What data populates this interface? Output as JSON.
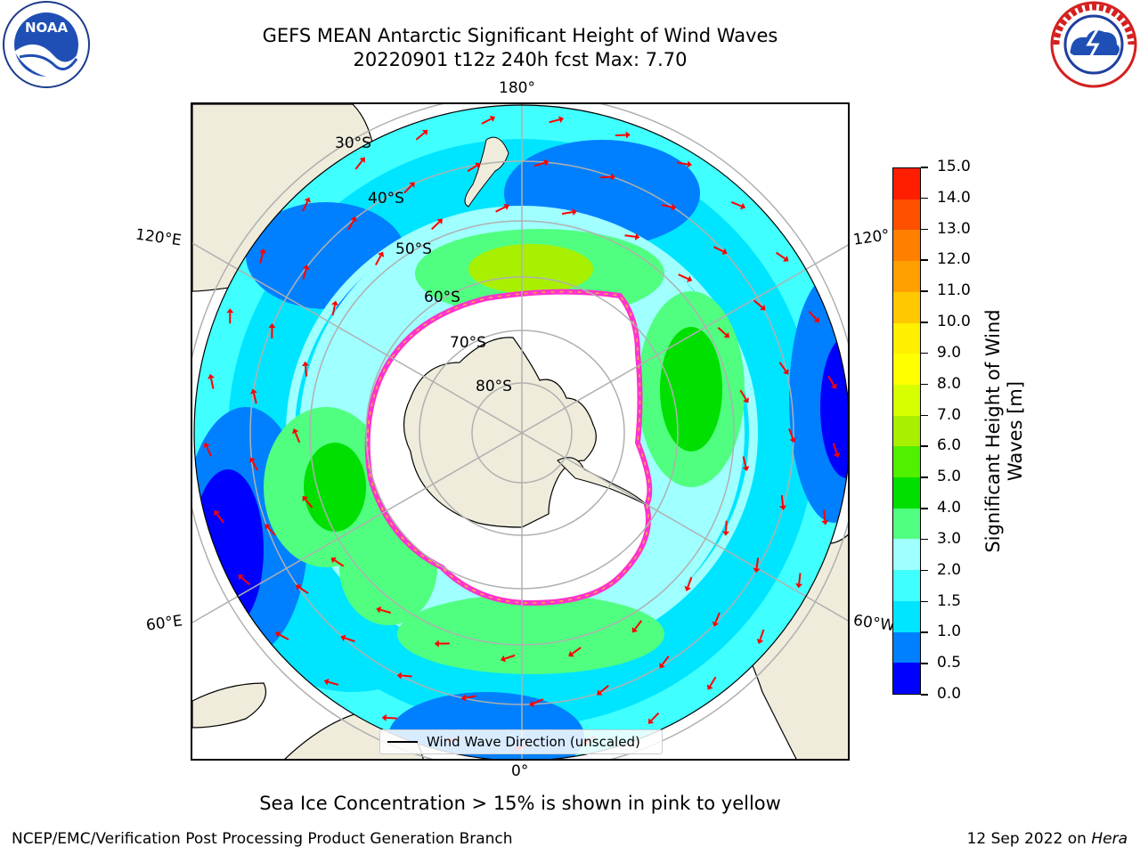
{
  "title_line1": "GEFS MEAN Antarctic Significant Height of Wind Waves",
  "title_line2": "20220901 t12z 240h fcst   Max: 7.70",
  "lon_labels": {
    "top": "180°",
    "bottom": "0°",
    "upper_left": "120°E",
    "lower_left": "60°E",
    "upper_right": "120°",
    "lower_right": "60°W"
  },
  "lat_labels": [
    "30°S",
    "40°S",
    "50°S",
    "60°S",
    "70°S",
    "80°S"
  ],
  "colorbar": {
    "title": "Significant Height of Wind Waves [m]",
    "ticks": [
      "0.0",
      "0.5",
      "1.0",
      "1.5",
      "2.0",
      "3.0",
      "4.0",
      "5.0",
      "6.0",
      "7.0",
      "8.0",
      "9.0",
      "10.0",
      "11.0",
      "12.0",
      "13.0",
      "14.0",
      "15.0"
    ],
    "colors": [
      "#0000ff",
      "#0080ff",
      "#00e5ff",
      "#40ffff",
      "#a0ffff",
      "#50ff80",
      "#00e000",
      "#50f000",
      "#a8f000",
      "#d8ff00",
      "#ffff00",
      "#fff000",
      "#ffc800",
      "#ffa000",
      "#ff8000",
      "#ff5000",
      "#ff1e00"
    ]
  },
  "legend_label": "Wind Wave Direction (unscaled)",
  "footer_note": "Sea Ice Concentration > 15% is shown in pink to yellow",
  "footer_left": "NCEP/EMC/Verification Post Processing Product Generation Branch",
  "footer_right_date": "12 Sep 2022 on",
  "footer_right_host": "Hera",
  "colors": {
    "land": "#efecdc",
    "ice_edge": "#ff33cc",
    "arrows": "#ff0000",
    "grid": "#b0b0b0"
  },
  "logos": {
    "left": "NOAA",
    "right": "NATIONAL WEATHER SERVICE"
  }
}
